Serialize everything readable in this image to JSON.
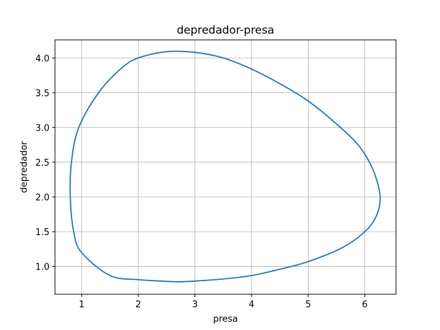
{
  "chart_data": {
    "type": "line",
    "title": "depredador-presa",
    "xlabel": "presa",
    "ylabel": "depredador",
    "xlim": [
      0.53,
      6.55
    ],
    "ylim": [
      0.6,
      4.26
    ],
    "xticks": [
      1,
      2,
      3,
      4,
      5,
      6
    ],
    "yticks": [
      1.0,
      1.5,
      2.0,
      2.5,
      3.0,
      3.5,
      4.0
    ],
    "xtick_labels": [
      "1",
      "2",
      "3",
      "4",
      "5",
      "6"
    ],
    "ytick_labels": [
      "1.0",
      "1.5",
      "2.0",
      "2.5",
      "3.0",
      "3.5",
      "4.0"
    ],
    "grid": true,
    "series_color": "#1f77b4",
    "series": [
      {
        "x": [
          2.0,
          2.5,
          3.0,
          3.5,
          4.0,
          4.5,
          5.0,
          5.5,
          5.9,
          6.15,
          6.27,
          6.2,
          6.0,
          5.6,
          5.0,
          4.5,
          4.0,
          3.5,
          3.0,
          2.68,
          2.4,
          2.0,
          1.5,
          1.0,
          0.86,
          0.8,
          0.82,
          0.95,
          1.3,
          1.7,
          2.0
        ],
        "y": [
          4.0,
          4.09,
          4.08,
          4.0,
          3.84,
          3.63,
          3.38,
          3.05,
          2.73,
          2.38,
          2.0,
          1.72,
          1.5,
          1.27,
          1.07,
          0.96,
          0.87,
          0.82,
          0.79,
          0.78,
          0.79,
          0.81,
          0.87,
          1.2,
          1.5,
          2.0,
          2.5,
          3.0,
          3.5,
          3.85,
          4.0
        ]
      }
    ]
  }
}
